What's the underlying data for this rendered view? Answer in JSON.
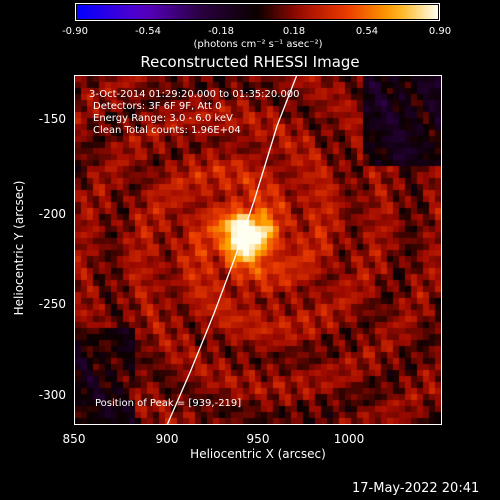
{
  "colorbar": {
    "tick_labels": [
      "-0.90",
      "-0.54",
      "-0.18",
      "0.18",
      "0.54",
      "0.90"
    ],
    "units": "(photons cm⁻² s⁻¹ asec⁻²)",
    "range": [
      -0.9,
      0.9
    ]
  },
  "title": "Reconstructed RHESSI Image",
  "info": {
    "time_range": "3-Oct-2014 01:29:20.000 to 01:35:20.000",
    "detectors": "Detectors: 3F 6F 9F, Att 0",
    "energy": "Energy Range: 3.0 - 6.0 keV",
    "clean": "Clean    Total counts: 1.96E+04",
    "peak": "Position of Peak = [939,-219]"
  },
  "axes": {
    "xlabel": "Heliocentric X (arcsec)",
    "ylabel": "Heliocentric Y (arcsec)",
    "xlim": [
      850,
      1040
    ],
    "ylim": [
      -318,
      -134
    ],
    "xticks": [
      "850",
      "900",
      "950",
      "1000"
    ],
    "yticks": [
      "-150",
      "-200",
      "-250",
      "-300"
    ]
  },
  "chart_data": {
    "type": "heatmap",
    "title": "Reconstructed RHESSI Image",
    "xlabel": "Heliocentric X (arcsec)",
    "ylabel": "Heliocentric Y (arcsec)",
    "xlim": [
      850,
      1040
    ],
    "ylim": [
      -318,
      -134
    ],
    "x_ticks": [
      850,
      900,
      950,
      1000
    ],
    "y_ticks": [
      -150,
      -200,
      -250,
      -300
    ],
    "colorbar_range": [
      -0.9,
      0.9
    ],
    "colormap": "fire",
    "peak": {
      "x": 939,
      "y": -219,
      "value": 0.9
    },
    "limb_curve": [
      {
        "x": 965,
        "y": -134
      },
      {
        "x": 955,
        "y": -160
      },
      {
        "x": 943,
        "y": -200
      },
      {
        "x": 933,
        "y": -230
      },
      {
        "x": 922,
        "y": -260
      },
      {
        "x": 910,
        "y": -290
      },
      {
        "x": 898,
        "y": -318
      }
    ]
  },
  "timestamp": "17-May-2022 20:41"
}
